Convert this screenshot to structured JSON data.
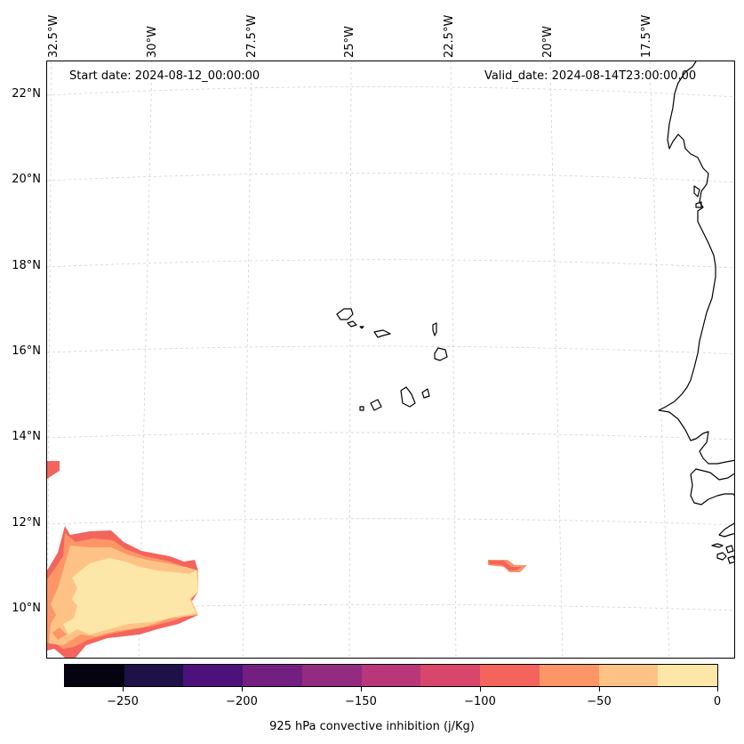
{
  "map": {
    "start_date": "Start date: 2024-08-12_00:00:00",
    "valid_date": "Valid_date: 2024-08-14T23:00:00.00",
    "lon_labels": [
      "32.5°W",
      "30°W",
      "27.5°W",
      "25°W",
      "22.5°W",
      "20°W",
      "17.5°W"
    ],
    "lat_labels": [
      "22°N",
      "20°N",
      "18°N",
      "16°N",
      "14°N",
      "12°N",
      "10°N"
    ],
    "gridlines": "dashed",
    "coastline_color": "#000000",
    "region": "Cabo Verde islands and West African coast (Senegal, Gambia, Guinea-Bissau)"
  },
  "colorbar": {
    "title": "925 hPa convective inhibition (j/Kg)",
    "tick_labels": [
      "−250",
      "−200",
      "−150",
      "−100",
      "−50",
      "0"
    ],
    "tick_values": [
      -250,
      -200,
      -150,
      -100,
      -50,
      0
    ],
    "range": [
      -275,
      0
    ],
    "step": 25,
    "colors": [
      "#05030f",
      "#1d1148",
      "#4c117a",
      "#721f81",
      "#932b80",
      "#b73779",
      "#d9466b",
      "#f3655c",
      "#fd9567",
      "#fec287",
      "#fde7a8"
    ]
  },
  "chart_data": {
    "type": "heatmap",
    "variable": "925 hPa convective inhibition",
    "units": "j/Kg",
    "levels": [
      -275,
      -250,
      -225,
      -200,
      -175,
      -150,
      -125,
      -100,
      -75,
      -50,
      -25,
      0
    ],
    "lon_ticks": [
      -32.5,
      -30,
      -27.5,
      -25,
      -22.5,
      -20,
      -17.5
    ],
    "lat_ticks": [
      22,
      20,
      18,
      16,
      14,
      12,
      10
    ],
    "extent": {
      "lon": [
        -32.6,
        -15.3
      ],
      "lat": [
        8.9,
        22.8
      ]
    },
    "inhibition_areas": [
      {
        "region": "southwest corner",
        "lon_range": [
          -32.6,
          -29.0
        ],
        "lat_range": [
          9.0,
          12.0
        ],
        "values_range": [
          -100,
          0
        ],
        "core_value": [
          -25,
          0
        ]
      },
      {
        "region": "west edge",
        "lon_range": [
          -32.6,
          -32.3
        ],
        "lat_range": [
          13.0,
          13.5
        ],
        "values_range": [
          -100,
          -75
        ]
      },
      {
        "region": "east-central",
        "lon_range": [
          -21.8,
          -20.9
        ],
        "lat_range": [
          10.9,
          11.1
        ],
        "values_range": [
          -100,
          -75
        ]
      }
    ]
  }
}
